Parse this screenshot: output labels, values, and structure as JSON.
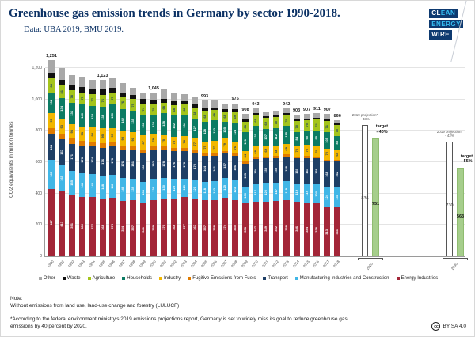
{
  "header": {
    "title": "Greenhouse gas emission trends in Germany by sector 1990-2018.",
    "subtitle": "Data: UBA 2019, BMU 2019.",
    "logo": {
      "clean_prefix": "CL",
      "clean_suffix": "EAN",
      "energy": "ENERGY",
      "wire": "WIRE"
    }
  },
  "chart_data": {
    "type": "bar",
    "stacked": true,
    "title": "Greenhouse gas emission trends in Germany by sector 1990-2018",
    "ylabel": "CO2 equivalents in million tonnes",
    "ylim": [
      0,
      1200
    ],
    "ytick_values": [
      0,
      200,
      400,
      600,
      800,
      1000,
      1200
    ],
    "ytick_labels": [
      "0",
      "200",
      "400",
      "600",
      "800",
      "1,000",
      "1,200"
    ],
    "grid": true,
    "legend_position": "bottom",
    "categories": [
      1990,
      1991,
      1992,
      1993,
      1994,
      1995,
      1996,
      1997,
      1998,
      1999,
      2000,
      2001,
      2002,
      2003,
      2004,
      2005,
      2006,
      2007,
      2008,
      2009,
      2010,
      2011,
      2012,
      2013,
      2014,
      2015,
      2016,
      2017,
      2018
    ],
    "series": [
      {
        "name": "Energy Industries",
        "color": "#a32638",
        "values": [
          427,
          413,
          391,
          380,
          377,
          368,
          375,
          354,
          357,
          341,
          359,
          370,
          368,
          377,
          367,
          357,
          358,
          374,
          360,
          338,
          347,
          349,
          352,
          358,
          346,
          344,
          338,
          313,
          311
        ]
      },
      {
        "name": "Manufacturing Industries and Construction",
        "color": "#41b6e6",
        "values": [
          187,
          165,
          155,
          148,
          148,
          148,
          146,
          146,
          139,
          133,
          136,
          130,
          125,
          119,
          121,
          118,
          122,
          125,
          123,
          100,
          117,
          120,
          117,
          119,
          119,
          119,
          120,
          124,
          131
        ]
      },
      {
        "name": "Transport",
        "color": "#1e3f66",
        "values": [
          164,
          167,
          171,
          176,
          174,
          176,
          178,
          176,
          181,
          186,
          182,
          178,
          176,
          176,
          170,
          164,
          161,
          157,
          156,
          153,
          154,
          155,
          155,
          158,
          160,
          163,
          166,
          168,
          162
        ]
      },
      {
        "name": "Fugitive Emissions from Fuels",
        "color": "#e07b00",
        "values": [
          39,
          35,
          33,
          31,
          29,
          28,
          27,
          26,
          24,
          23,
          22,
          21,
          20,
          19,
          18,
          17,
          16,
          16,
          15,
          14,
          14,
          14,
          14,
          14,
          13,
          13,
          13,
          12,
          12
        ]
      },
      {
        "name": "Industry",
        "color": "#f2b700",
        "values": [
          97,
          93,
          93,
          93,
          95,
          95,
          93,
          95,
          91,
          87,
          79,
          75,
          75,
          76,
          77,
          75,
          77,
          79,
          76,
          64,
          68,
          69,
          68,
          69,
          70,
          70,
          70,
          70,
          65
        ]
      },
      {
        "name": "Households",
        "color": "#0c7b63",
        "values": [
          132,
          134,
          136,
          140,
          134,
          138,
          150,
          142,
          135,
          131,
          125,
          138,
          132,
          134,
          127,
          128,
          132,
          105,
          124,
          121,
          131,
          107,
          112,
          115,
          84,
          90,
          95,
          105,
          85
        ]
      },
      {
        "name": "Agriculture",
        "color": "#a4c41c",
        "values": [
          88,
          81,
          78,
          77,
          77,
          76,
          75,
          76,
          75,
          74,
          70,
          68,
          68,
          68,
          68,
          68,
          68,
          68,
          69,
          68,
          69,
          69,
          70,
          70,
          70,
          70,
          71,
          71,
          70
        ]
      },
      {
        "name": "Waste",
        "color": "#111111",
        "values": [
          38,
          37,
          36,
          36,
          35,
          33,
          32,
          30,
          28,
          27,
          25,
          24,
          22,
          20,
          19,
          18,
          16,
          15,
          14,
          13,
          12,
          11,
          11,
          10,
          10,
          10,
          10,
          10,
          10
        ]
      },
      {
        "name": "Other",
        "color": "#a8a8a8",
        "values": [
          79,
          76,
          62,
          66,
          58,
          61,
          65,
          60,
          46,
          44,
          47,
          58,
          54,
          45,
          46,
          48,
          50,
          32,
          39,
          37,
          31,
          28,
          27,
          29,
          31,
          28,
          28,
          34,
          20
        ]
      }
    ],
    "totals": [
      1251,
      1201,
      1155,
      1147,
      1127,
      1123,
      1141,
      1105,
      1076,
      1046,
      1045,
      1062,
      1040,
      1034,
      1013,
      993,
      1000,
      971,
      976,
      908,
      943,
      922,
      926,
      942,
      903,
      907,
      911,
      907,
      866
    ],
    "total_labels": {
      "1990": "1,251",
      "1995": "1,123",
      "2000": "1,045",
      "2005": "993",
      "2008": "976",
      "2009": "908",
      "2010": "943",
      "2013": "942",
      "2014": "903",
      "2015": "907",
      "2016": "911",
      "2017": "907",
      "2018": "866"
    },
    "legend": [
      {
        "label": "Other",
        "color": "#a8a8a8"
      },
      {
        "label": "Waste",
        "color": "#111111"
      },
      {
        "label": "Agriculture",
        "color": "#a4c41c"
      },
      {
        "label": "Households",
        "color": "#0c7b63"
      },
      {
        "label": "Industry",
        "color": "#f2b700"
      },
      {
        "label": "Fugitive Emissions from Fuels",
        "color": "#e07b00"
      },
      {
        "label": "Transport",
        "color": "#1e3f66"
      },
      {
        "label": "Manufacturing Industries and Construction",
        "color": "#41b6e6"
      },
      {
        "label": "Energy Industries",
        "color": "#a32638"
      }
    ],
    "projections": [
      {
        "group_label": "2020",
        "projection": {
          "label_line1": "2019 projection*",
          "label_line2": "- 33%",
          "value": 836
        },
        "target": {
          "label_line1": "target",
          "label_line2": "- 40%",
          "value": 751
        }
      },
      {
        "group_label": "2030",
        "projection": {
          "label_line1": "2019 projection*",
          "label_line2": "- 42%",
          "value": 730
        },
        "target": {
          "label_line1": "target",
          "label_line2": "- 55%",
          "value": 563
        }
      }
    ],
    "target_bar_color": "#a6ce8c"
  },
  "notes": {
    "note_label": "Note:",
    "note_body": "Without emissions from land use, land-use change and forestry (LULUCF)",
    "footnote": "*According to the federal environment ministry's 2019 emissions projections report, Germany is set to widely miss its goal to reduce greenhouse gas emissions by 40 percent by 2020."
  },
  "footer": {
    "cc": "cc",
    "license": "BY SA 4.0"
  }
}
